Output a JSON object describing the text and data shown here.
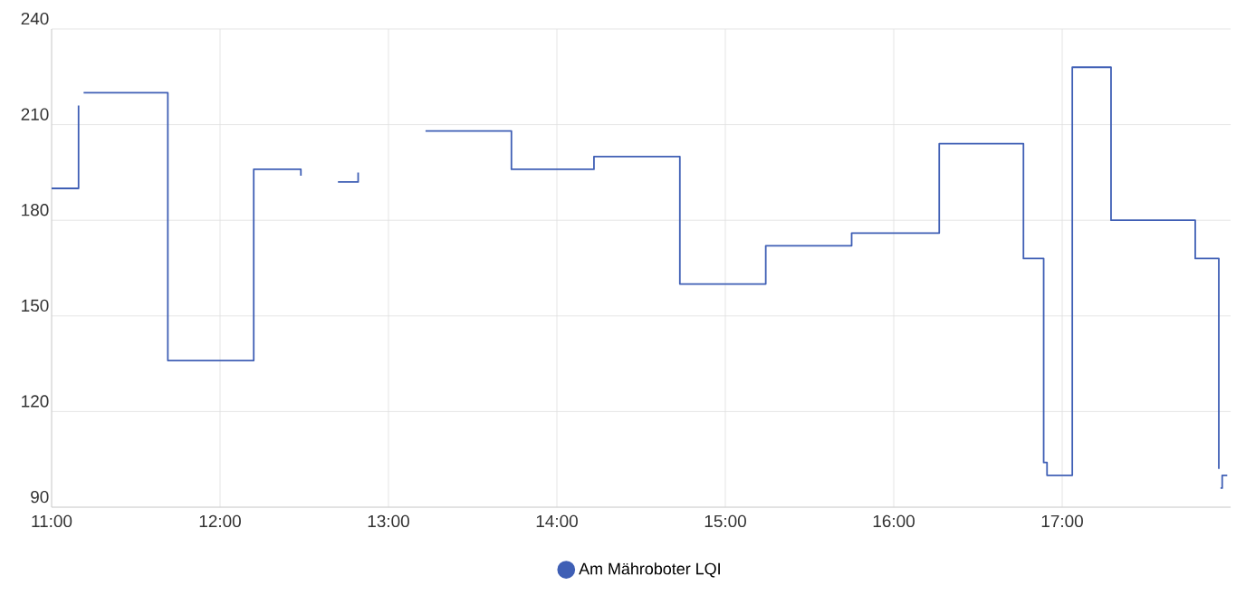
{
  "chart_data": {
    "type": "step",
    "x": [
      11.0,
      11.16,
      11.17,
      11.19,
      11.69,
      12.2,
      12.48,
      12.6,
      12.7,
      12.82,
      13.0,
      13.22,
      13.73,
      14.22,
      14.73,
      15.24,
      15.75,
      16.27,
      16.77,
      16.89,
      16.91,
      17.06,
      17.29,
      17.79,
      17.93,
      17.935,
      17.94,
      17.95,
      17.98
    ],
    "series": [
      {
        "name": "Am Mähroboter LQI",
        "color": "#3f5fb5",
        "values": [
          190,
          216,
          null,
          220,
          136,
          196,
          194,
          null,
          192,
          195,
          null,
          208,
          196,
          200,
          160,
          172,
          176,
          204,
          168,
          104,
          100,
          228,
          180,
          168,
          102,
          null,
          96,
          100,
          100
        ]
      }
    ],
    "xlim": [
      11,
      18
    ],
    "xticks": [
      {
        "value": 11,
        "label": "11:00"
      },
      {
        "value": 12,
        "label": "12:00"
      },
      {
        "value": 13,
        "label": "13:00"
      },
      {
        "value": 14,
        "label": "14:00"
      },
      {
        "value": 15,
        "label": "15:00"
      },
      {
        "value": 16,
        "label": "16:00"
      },
      {
        "value": 17,
        "label": "17:00"
      }
    ],
    "ylim": [
      90,
      240
    ],
    "yticks": [
      90,
      120,
      150,
      180,
      210,
      240
    ],
    "grid": true,
    "legend": "bottom",
    "line_style": "solid"
  }
}
